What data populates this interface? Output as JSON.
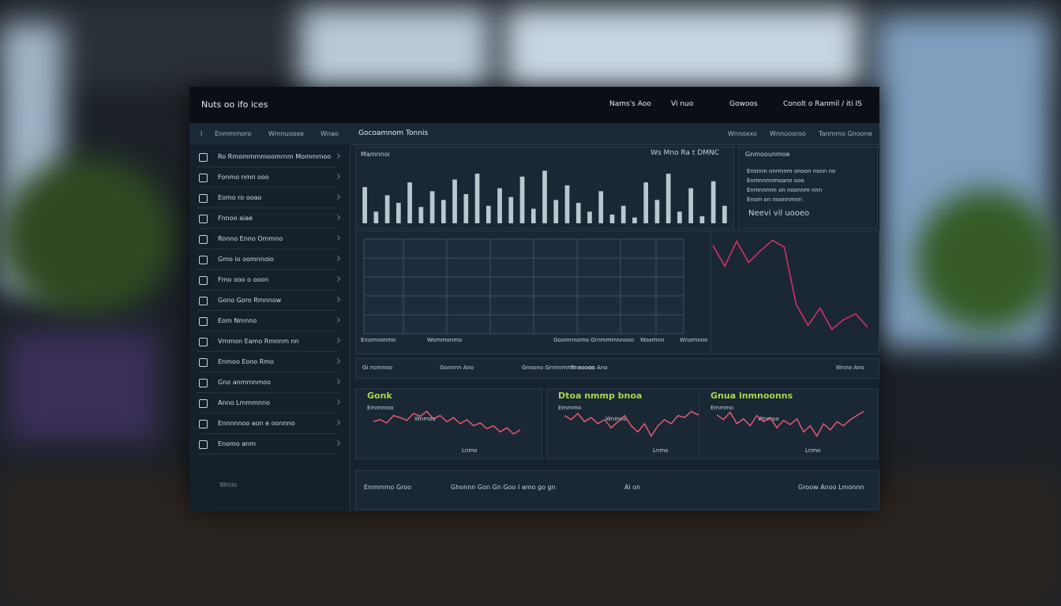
{
  "header": {
    "logo": "Nuts oo ifo ices",
    "links": [
      "Nams's Aoo",
      "Vi nuo",
      "Gowoos",
      "Conolt o Ranmil / iti IS"
    ]
  },
  "tabs": {
    "left": [
      "I",
      "Enmmmoro",
      "Wmnuooxe",
      "Wnao"
    ],
    "title": "Gocoamnom Tonnis",
    "right": [
      "Wnnoxxo",
      "Wnnuooroo",
      "Tanmmo Gnoone"
    ]
  },
  "sidebar": {
    "items": [
      "Ro Rmommmmoomrnm Mommmoo",
      "Fonmo nmn ooo",
      "Eomo ro ooao",
      "Fnnoo aiae",
      "Ronno Enno Ommno",
      "Gmo io oomnnoio",
      "Fmo ooo o ooon",
      "Gono Goro Rmnnow",
      "Eom Nmnno",
      "Vmmon Eamo Rmnnm nn",
      "Enmoo Eono Rmo",
      "Gno anmmnmoo",
      "Anno Lmmmnno",
      "Ennnnnoo aon e oonnno",
      "Enomo anm"
    ],
    "footer": "Wniio"
  },
  "bar_panel": {
    "title": "Mamnnoi",
    "header": "Ws Mno Ra t DMNC",
    "chart": {
      "type": "bar",
      "ylim": [
        0,
        100
      ],
      "color": "#b9c8ce",
      "values": [
        62,
        20,
        48,
        35,
        70,
        28,
        55,
        40,
        75,
        50,
        85,
        30,
        60,
        45,
        80,
        25,
        90,
        40,
        65,
        35,
        20,
        55,
        15,
        30,
        10,
        70,
        40,
        85,
        20,
        60,
        12,
        72,
        30
      ]
    }
  },
  "info_panel": {
    "title": "Gnmoounmoe",
    "lines": [
      "Ensnnn onrmnm onoon nonn no",
      "Enmnnnnmoann ooo",
      "Enmnnnnn on noonnm nnn",
      "Ensm on noonnmnn"
    ],
    "footer": "Neevi vil uooeo"
  },
  "grid_panel": {
    "labels": [
      "Enomnonmo",
      "Wommonmo",
      "Goomnnomo Grnmmmnnooo",
      "Woxmnn",
      "Wnomnoo"
    ]
  },
  "trend_panel": {
    "chart": {
      "type": "line",
      "ylim": [
        0,
        100
      ],
      "color": "#e0306a",
      "values": [
        92,
        70,
        96,
        74,
        86,
        97,
        90,
        30,
        8,
        26,
        4,
        14,
        20,
        6
      ]
    }
  },
  "strip": {
    "items": [
      "Gi nomnoo",
      "Gonnnn Ano",
      "Gnoono Gnmnmmn aoooo",
      "Ennoonn Ano",
      "Wnno Ano"
    ]
  },
  "mini_charts": [
    {
      "title": "Gonk",
      "labels": [
        "Emmmoo",
        "Wnmoo",
        "Lnmo"
      ],
      "chart": {
        "type": "line",
        "ylim": [
          0,
          100
        ],
        "color": "#e65a70",
        "values": [
          55,
          60,
          52,
          70,
          65,
          58,
          75,
          68,
          80,
          62,
          70,
          55,
          65,
          50,
          60,
          45,
          52,
          38,
          45,
          30,
          40,
          25,
          35
        ]
      }
    },
    {
      "title": "Dtoa nmmp bnoa",
      "labels": [
        "Emmmo",
        "Wnmoo",
        "Lnmo"
      ],
      "chart": {
        "type": "line",
        "ylim": [
          0,
          100
        ],
        "color": "#e65a70",
        "values": [
          70,
          60,
          75,
          55,
          65,
          50,
          60,
          40,
          55,
          70,
          45,
          30,
          50,
          20,
          45,
          60,
          50,
          70,
          65,
          80,
          72,
          85,
          75
        ]
      }
    },
    {
      "title": "Gnua inmnoonns",
      "labels": [
        "Emmmo",
        "Wnmoo",
        "Lnmo"
      ],
      "chart": {
        "type": "line",
        "ylim": [
          0,
          100
        ],
        "color": "#e65a70",
        "values": [
          72,
          60,
          78,
          50,
          62,
          45,
          70,
          55,
          65,
          40,
          58,
          48,
          62,
          30,
          45,
          20,
          50,
          35,
          55,
          45,
          60,
          70,
          80
        ]
      }
    }
  ],
  "footer": {
    "items": [
      "Enmmmo Groo",
      "Ghonnn Gon Gn Goo I amo go gn",
      "Ai on",
      "Groow Anoo Lmonnn"
    ]
  }
}
